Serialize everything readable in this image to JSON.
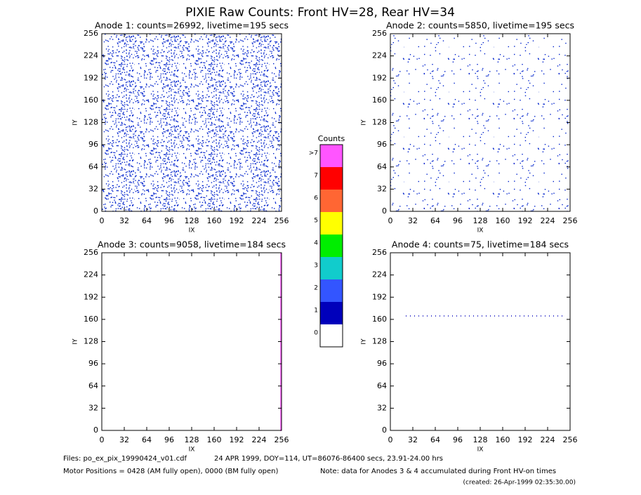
{
  "title": "PIXIE Raw Counts:  Front HV=28, Rear HV=34",
  "chart_data": [
    {
      "type": "scatter",
      "title": "Anode 1: counts=26992, livetime=195 secs",
      "xlabel": "IX",
      "ylabel": "IY",
      "xlim": [
        0,
        256
      ],
      "ylim": [
        0,
        256
      ],
      "xticks": [
        0,
        32,
        64,
        96,
        128,
        160,
        192,
        224,
        256
      ],
      "yticks": [
        0,
        32,
        64,
        96,
        128,
        160,
        192,
        224,
        256
      ]
    },
    {
      "type": "scatter",
      "title": "Anode 2: counts=5850, livetime=195 secs",
      "xlabel": "IX",
      "ylabel": "IY",
      "xlim": [
        0,
        256
      ],
      "ylim": [
        0,
        256
      ],
      "xticks": [
        0,
        32,
        64,
        96,
        128,
        160,
        192,
        224,
        256
      ],
      "yticks": [
        0,
        32,
        64,
        96,
        128,
        160,
        192,
        224,
        256
      ]
    },
    {
      "type": "scatter",
      "title": "Anode 3: counts=9058, livetime=184 secs",
      "xlabel": "IX",
      "ylabel": "IY",
      "xlim": [
        0,
        256
      ],
      "ylim": [
        0,
        256
      ],
      "xticks": [
        0,
        32,
        64,
        96,
        128,
        160,
        192,
        224,
        256
      ],
      "yticks": [
        0,
        32,
        64,
        96,
        128,
        160,
        192,
        224,
        256
      ]
    },
    {
      "type": "scatter",
      "title": "Anode 4: counts=75, livetime=184 secs",
      "xlabel": "IX",
      "ylabel": "IY",
      "xlim": [
        0,
        256
      ],
      "ylim": [
        0,
        256
      ],
      "xticks": [
        0,
        32,
        64,
        96,
        128,
        160,
        192,
        224,
        256
      ],
      "yticks": [
        0,
        32,
        64,
        96,
        128,
        160,
        192,
        224,
        256
      ]
    }
  ],
  "colorbar": {
    "title": "Counts",
    "levels": [
      {
        "label": "0",
        "color": "#ffffff"
      },
      {
        "label": "1",
        "color": "#0000bb"
      },
      {
        "label": "2",
        "color": "#3355ff"
      },
      {
        "label": "3",
        "color": "#11cccc"
      },
      {
        "label": "4",
        "color": "#00ee00"
      },
      {
        "label": "5",
        "color": "#ffff00"
      },
      {
        "label": "6",
        "color": "#ff6633"
      },
      {
        "label": "7",
        "color": "#ff0000"
      },
      {
        "label": ">7",
        "color": "#ff55ff"
      }
    ]
  },
  "footer": {
    "files": "Files: po_ex_pix_19990424_v01.cdf",
    "date": "24 APR 1999, DOY=114, UT=86076-86400 secs, 23.91-24.00 hrs",
    "motor": "Motor Positions = 0428 (AM fully open), 0000 (BM fully open)",
    "note": "Note: data for Anodes 3 & 4 accumulated during Front HV-on times",
    "created": "(created: 26-Apr-1999 02:35:30.00)"
  }
}
